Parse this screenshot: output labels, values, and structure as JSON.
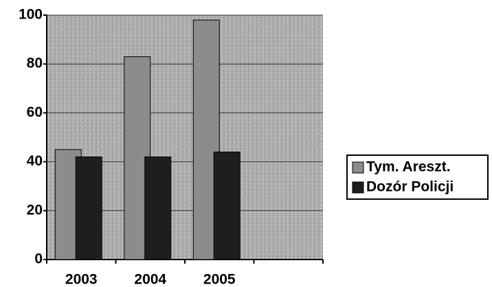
{
  "chart_data": {
    "type": "bar",
    "categories": [
      "2003",
      "2004",
      "2005",
      null
    ],
    "series": [
      {
        "name": "Tym. Areszt.",
        "color": "#8c8c8c",
        "values": [
          45,
          83,
          98,
          null
        ]
      },
      {
        "name": "Dozór Policji",
        "color": "#1e1e1e",
        "values": [
          42,
          42,
          44,
          null
        ]
      }
    ],
    "ylim": [
      0,
      100
    ],
    "yticks": [
      0,
      20,
      40,
      60,
      80,
      100
    ],
    "grid": true,
    "legend": "right"
  }
}
